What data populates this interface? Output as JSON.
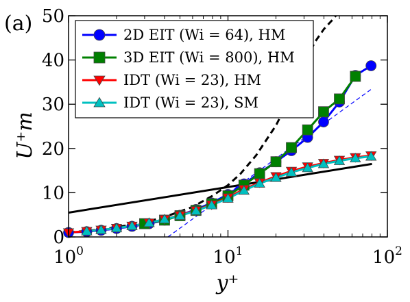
{
  "panel_label": "(a)",
  "chart_data": {
    "type": "line",
    "xlabel": "y⁺",
    "ylabel": "U⁺m",
    "xscale": "log",
    "xlim": [
      1,
      100
    ],
    "ylim": [
      0,
      50
    ],
    "x_tick_labels": [
      {
        "value": 1,
        "base": "10",
        "exp": "0"
      },
      {
        "value": 10,
        "base": "10",
        "exp": "1"
      },
      {
        "value": 100,
        "base": "10",
        "exp": "2"
      }
    ],
    "y_ticks": [
      0,
      10,
      20,
      30,
      40,
      50
    ],
    "legend_position": "top-left",
    "series": [
      {
        "name": "2D EIT (Wi = 64), HM",
        "color": "#0000ff",
        "marker": "circle",
        "x": [
          1,
          1.3,
          1.6,
          2,
          2.5,
          3.2,
          4,
          5,
          6.3,
          7.9,
          10,
          12.6,
          15.8,
          20,
          25,
          31.6,
          39.8,
          50,
          63,
          79
        ],
        "y": [
          1.0,
          1.2,
          1.5,
          1.9,
          2.4,
          3.0,
          3.8,
          4.9,
          6.2,
          7.7,
          9.6,
          12.0,
          14.5,
          17.0,
          19.5,
          22.5,
          26.0,
          30.5,
          36.5,
          38.7
        ]
      },
      {
        "name": "3D EIT (Wi = 800), HM",
        "color": "#008000",
        "marker": "square",
        "x": [
          3,
          4,
          5,
          6.3,
          7.9,
          10,
          12.6,
          15.8,
          20,
          25,
          31.6,
          39.8,
          50,
          63
        ],
        "y": [
          3.0,
          3.8,
          4.8,
          6.0,
          7.5,
          9.3,
          11.7,
          14.3,
          17.0,
          20.2,
          24.2,
          28.3,
          31.2,
          36.3
        ]
      },
      {
        "name": "IDT (Wi = 23), HM",
        "color": "#ff0000",
        "marker": "triangle-down",
        "x": [
          1,
          1.3,
          1.6,
          2,
          2.5,
          3.2,
          4,
          5,
          6.3,
          7.9,
          10,
          12.6,
          15.8,
          20,
          25,
          31.6,
          39.8,
          50,
          63,
          79
        ],
        "y": [
          1.0,
          1.3,
          1.6,
          2.0,
          2.5,
          3.2,
          4.0,
          4.9,
          6.0,
          7.3,
          8.9,
          10.8,
          12.3,
          13.7,
          14.9,
          15.9,
          16.7,
          17.4,
          18.0,
          18.4
        ]
      },
      {
        "name": "IDT (Wi = 23), SM",
        "color": "#00c0c0",
        "marker": "triangle-up",
        "x": [
          1.3,
          1.6,
          2,
          2.5,
          3.2,
          4,
          5,
          6.3,
          7.9,
          10,
          12.6,
          15.8,
          20,
          25,
          31.6,
          39.8,
          50,
          63,
          79
        ],
        "y": [
          1.3,
          1.6,
          2.0,
          2.5,
          3.2,
          4.0,
          4.8,
          5.9,
          7.2,
          8.7,
          10.5,
          12.1,
          13.4,
          14.6,
          15.6,
          16.5,
          17.2,
          17.8,
          18.2
        ]
      }
    ],
    "reference_lines": [
      {
        "style": "solid-thick",
        "color": "#000000",
        "x": [
          1,
          80
        ],
        "y": [
          5.5,
          16.5
        ]
      },
      {
        "style": "dashed-thick",
        "color": "#000000",
        "x": [
          1,
          1.5,
          2,
          3,
          4,
          6,
          8,
          10,
          12,
          15,
          20,
          25,
          30,
          35,
          40,
          45,
          50
        ],
        "y": [
          1.0,
          1.6,
          2.2,
          3.3,
          4.5,
          6.8,
          9.3,
          11.7,
          14.3,
          18.4,
          25.2,
          32.1,
          38.9,
          44.0,
          47.0,
          49.0,
          51.0
        ]
      },
      {
        "style": "dashed-thin",
        "color": "#0000ff",
        "x": [
          4.2,
          80
        ],
        "y": [
          0,
          33.5
        ]
      }
    ]
  }
}
